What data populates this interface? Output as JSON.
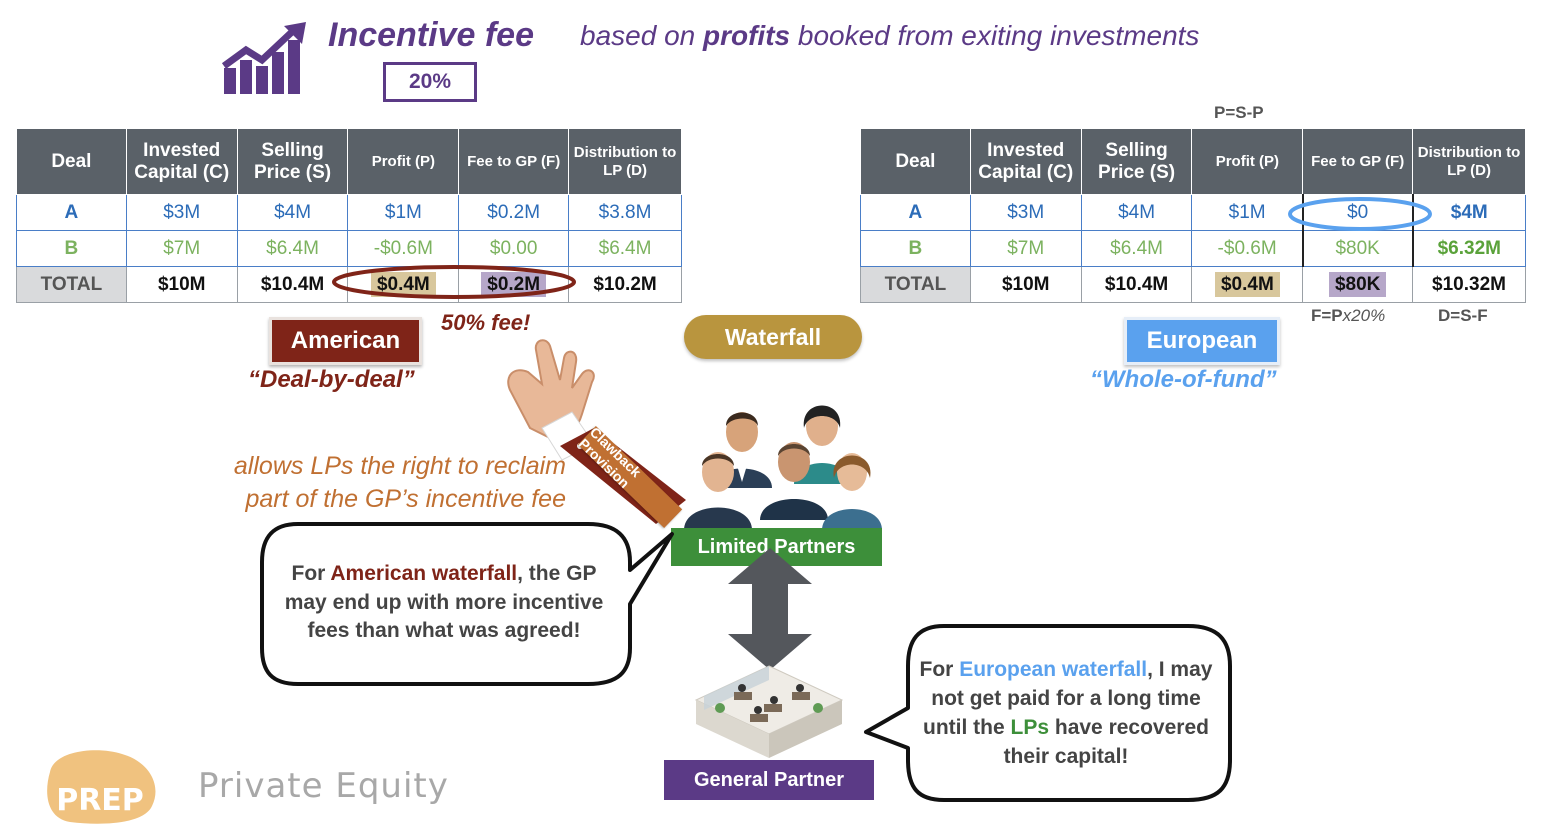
{
  "header": {
    "title": "Incentive fee",
    "subtitle_before": "based on ",
    "subtitle_bold": "profits",
    "subtitle_after": " booked from exiting investments",
    "rate": "20%",
    "icon": "growth-chart-icon"
  },
  "tables": {
    "columns": [
      "Deal",
      "Invested Capital (C)",
      "Selling Price (S)",
      "Profit (P)",
      "Fee to GP (F)",
      "Distribution to LP (D)"
    ],
    "american": {
      "rows": [
        [
          "A",
          "$3M",
          "$4M",
          "$1M",
          "$0.2M",
          "$3.8M"
        ],
        [
          "B",
          "$7M",
          "$6.4M",
          "-$0.6M",
          "$0.00",
          "$6.4M"
        ]
      ],
      "total": [
        "TOTAL",
        "$10M",
        "$10.4M",
        "$0.4M",
        "$0.2M",
        "$10.2M"
      ]
    },
    "european": {
      "rows": [
        [
          "A",
          "$3M",
          "$4M",
          "$1M",
          "$0",
          "$4M"
        ],
        [
          "B",
          "$7M",
          "$6.4M",
          "-$0.6M",
          "$80K",
          "$6.32M"
        ]
      ],
      "total": [
        "TOTAL",
        "$10M",
        "$10.4M",
        "$0.4M",
        "$80K",
        "$10.32M"
      ]
    }
  },
  "formulas": {
    "profit": "P=S-P",
    "fee_prefix": "F=P",
    "fee_suffix": "x20%",
    "distribution": "D=S-F"
  },
  "labels": {
    "american": "American",
    "american_sub": "“Deal-by-deal”",
    "european": "European",
    "european_sub": "“Whole-of-fund”",
    "waterfall": "Waterfall",
    "fee_warning": "50% fee!",
    "clawback_tag": "Clawback Provision",
    "clawback_note": "allows LPs the right to reclaim part of the GP’s incentive fee",
    "limited_partners": "Limited Partners",
    "general_partner": "General Partner"
  },
  "bubbles": {
    "left": {
      "p1": "For ",
      "p2": "American waterfall",
      "p3": ", the GP may end up with more incentive fees than what was agreed!"
    },
    "right": {
      "p1": "For ",
      "p2": "European waterfall",
      "p3": ", I may not get paid for a long time until the ",
      "p4": "LPs",
      "p5": " have recovered their capital!"
    }
  },
  "brand": {
    "logo": "PREP",
    "name": "Private Equity"
  },
  "colors": {
    "purple": "#5b3a86",
    "maroon": "#7f2418",
    "european_blue": "#5aa1ee",
    "green": "#3d8f3a",
    "gold": "#b9953e"
  }
}
